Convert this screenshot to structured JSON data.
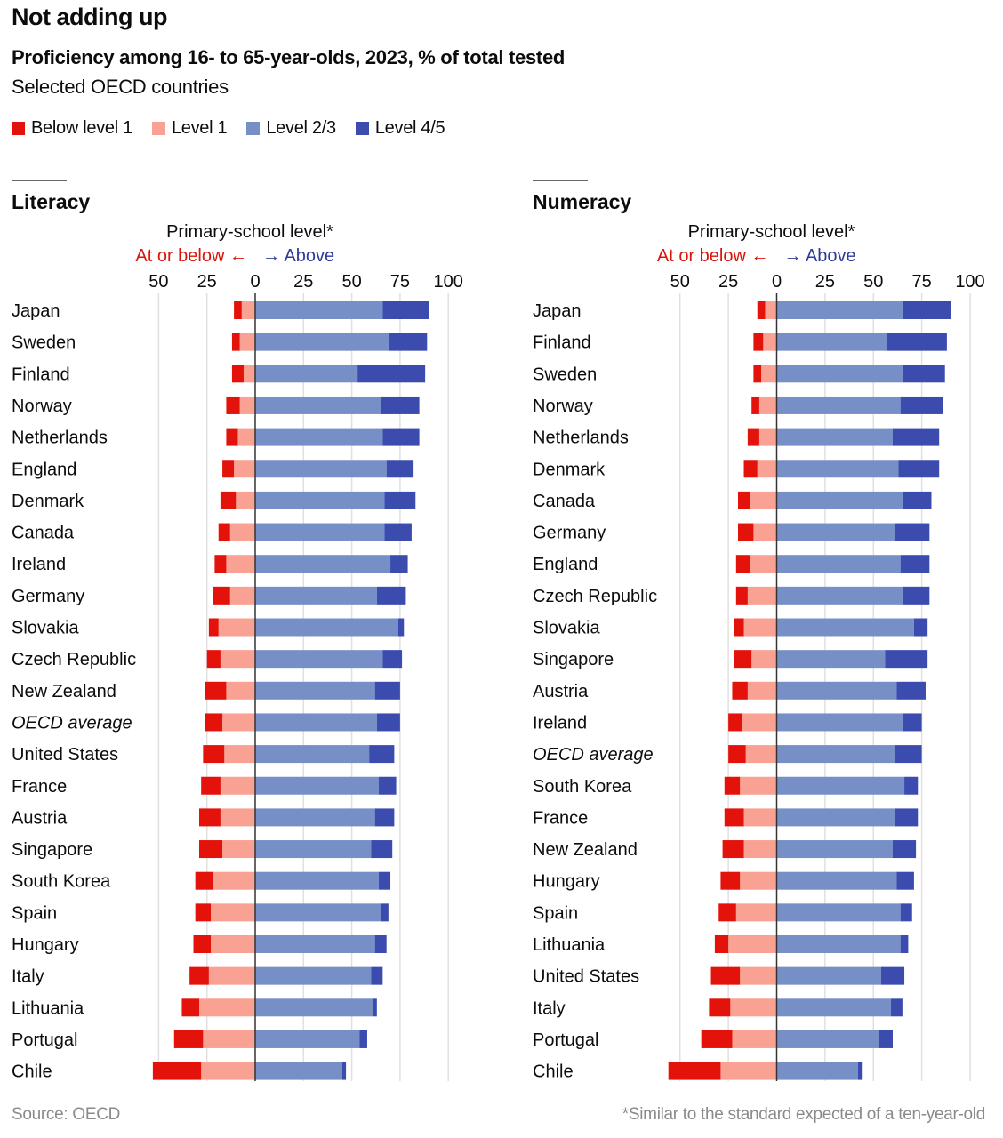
{
  "title": "Not adding up",
  "subtitle": "Proficiency among 16- to 65-year-olds, 2023, % of total tested",
  "subsubtitle": "Selected OECD countries",
  "legend": [
    {
      "label": "Below level 1",
      "color": "#e3120b"
    },
    {
      "label": "Level 1",
      "color": "#f9a192"
    },
    {
      "label": "Level 2/3",
      "color": "#7690c7"
    },
    {
      "label": "Level 4/5",
      "color": "#3b4cae"
    }
  ],
  "footer": {
    "source": "Source: OECD",
    "note": "*Similar to the standard expected of a ten-year-old"
  },
  "chart_data": [
    {
      "type": "bar",
      "orientation": "horizontal-diverging",
      "title": "Literacy",
      "axis_title": "Primary-school level*",
      "left_label": "At or below",
      "right_label": "Above",
      "left_arrow": "←",
      "right_arrow": "→",
      "xlim": [
        -50,
        100
      ],
      "ticks": [
        -50,
        -25,
        0,
        25,
        50,
        75,
        100
      ],
      "tick_labels": [
        "50",
        "25",
        "0",
        "25",
        "50",
        "75",
        "100"
      ],
      "grid": true,
      "legend_position": "top-left",
      "categories": [
        "Japan",
        "Sweden",
        "Finland",
        "Norway",
        "Netherlands",
        "England",
        "Denmark",
        "Canada",
        "Ireland",
        "Germany",
        "Slovakia",
        "Czech Republic",
        "New Zealand",
        "OECD average",
        "United States",
        "France",
        "Austria",
        "Singapore",
        "South Korea",
        "Spain",
        "Hungary",
        "Italy",
        "Lithuania",
        "Portugal",
        "Chile"
      ],
      "italic_categories": [
        "OECD average"
      ],
      "series": [
        {
          "name": "Below level 1",
          "side": "left",
          "values": [
            4,
            4,
            6,
            7,
            6,
            6,
            8,
            6,
            6,
            9,
            5,
            7,
            11,
            9,
            11,
            10,
            11,
            12,
            9,
            8,
            9,
            10,
            9,
            15,
            25
          ]
        },
        {
          "name": "Level 1",
          "side": "left",
          "values": [
            7,
            8,
            6,
            8,
            9,
            11,
            10,
            13,
            15,
            13,
            19,
            18,
            15,
            17,
            16,
            18,
            18,
            17,
            22,
            23,
            23,
            24,
            29,
            27,
            28
          ]
        },
        {
          "name": "Level 2/3",
          "side": "right",
          "values": [
            66,
            69,
            53,
            65,
            66,
            68,
            67,
            67,
            70,
            63,
            74,
            66,
            62,
            63,
            59,
            64,
            62,
            60,
            64,
            65,
            62,
            60,
            61,
            54,
            45
          ]
        },
        {
          "name": "Level 4/5",
          "side": "right",
          "values": [
            24,
            20,
            35,
            20,
            19,
            14,
            16,
            14,
            9,
            15,
            3,
            10,
            13,
            12,
            13,
            9,
            10,
            11,
            6,
            4,
            6,
            6,
            2,
            4,
            2
          ]
        }
      ]
    },
    {
      "type": "bar",
      "orientation": "horizontal-diverging",
      "title": "Numeracy",
      "axis_title": "Primary-school level*",
      "left_label": "At or below",
      "right_label": "Above",
      "left_arrow": "←",
      "right_arrow": "→",
      "xlim": [
        -50,
        100
      ],
      "ticks": [
        -50,
        -25,
        0,
        25,
        50,
        75,
        100
      ],
      "tick_labels": [
        "50",
        "25",
        "0",
        "25",
        "50",
        "75",
        "100"
      ],
      "grid": true,
      "legend_position": "top-left",
      "categories": [
        "Japan",
        "Finland",
        "Sweden",
        "Norway",
        "Netherlands",
        "Denmark",
        "Canada",
        "Germany",
        "England",
        "Czech Republic",
        "Slovakia",
        "Singapore",
        "Austria",
        "Ireland",
        "OECD average",
        "South Korea",
        "France",
        "New Zealand",
        "Hungary",
        "Spain",
        "Lithuania",
        "United States",
        "Italy",
        "Portugal",
        "Chile"
      ],
      "italic_categories": [
        "OECD average"
      ],
      "series": [
        {
          "name": "Below level 1",
          "side": "left",
          "values": [
            4,
            5,
            4,
            4,
            6,
            7,
            6,
            8,
            7,
            6,
            5,
            9,
            8,
            7,
            9,
            8,
            10,
            11,
            10,
            9,
            7,
            15,
            11,
            16,
            27
          ]
        },
        {
          "name": "Level 1",
          "side": "left",
          "values": [
            6,
            7,
            8,
            9,
            9,
            10,
            14,
            12,
            14,
            15,
            17,
            13,
            15,
            18,
            16,
            19,
            17,
            17,
            19,
            21,
            25,
            19,
            24,
            23,
            29
          ]
        },
        {
          "name": "Level 2/3",
          "side": "right",
          "values": [
            65,
            57,
            65,
            64,
            60,
            63,
            65,
            61,
            64,
            65,
            71,
            56,
            62,
            65,
            61,
            66,
            61,
            60,
            62,
            64,
            64,
            54,
            59,
            53,
            42
          ]
        },
        {
          "name": "Level 4/5",
          "side": "right",
          "values": [
            25,
            31,
            22,
            22,
            24,
            21,
            15,
            18,
            15,
            14,
            7,
            22,
            15,
            10,
            14,
            7,
            12,
            12,
            9,
            6,
            4,
            12,
            6,
            7,
            2
          ]
        }
      ]
    }
  ]
}
